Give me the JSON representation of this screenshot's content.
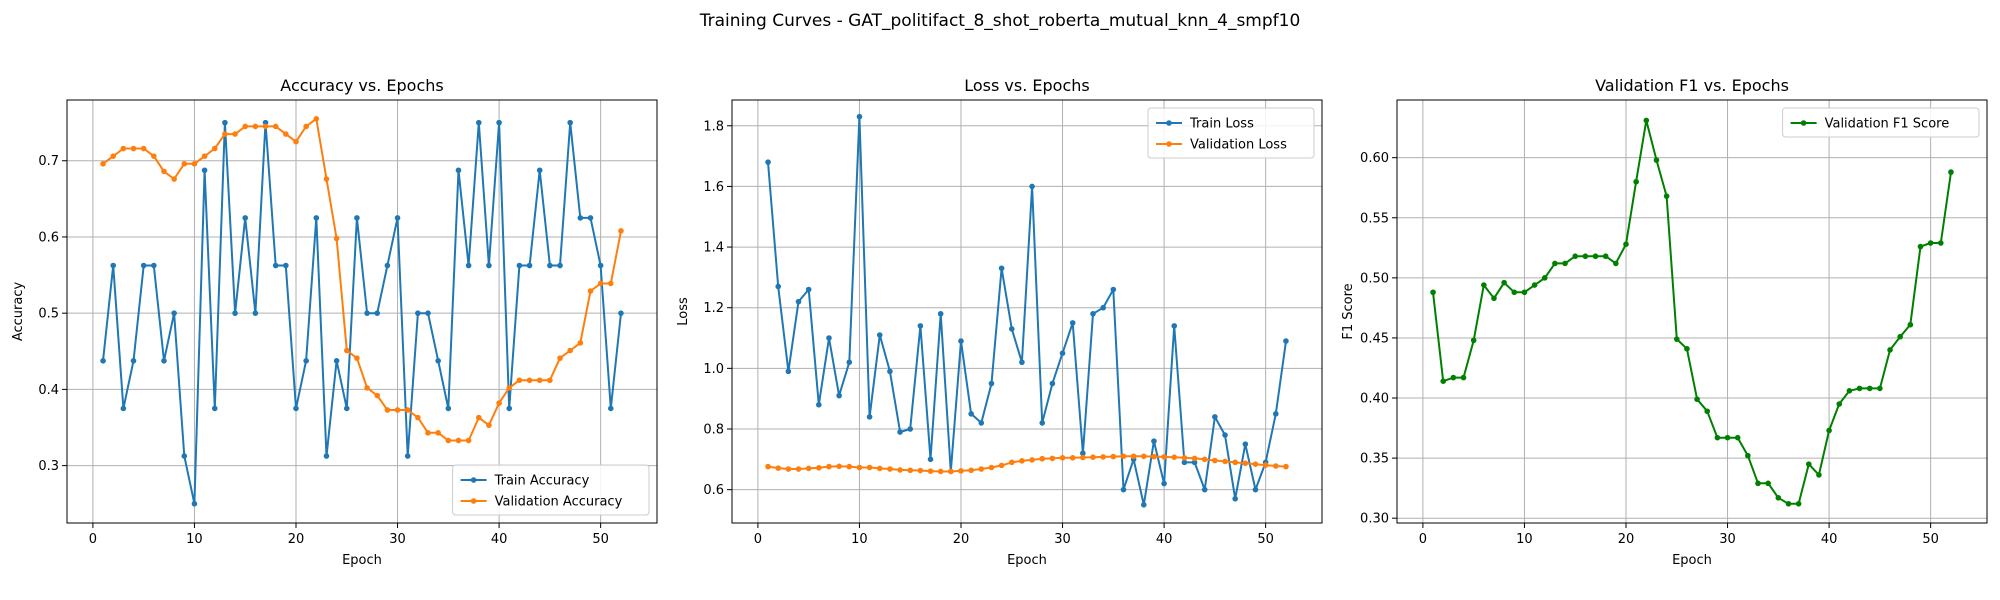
{
  "figure": {
    "suptitle": "Training Curves - GAT_politifact_8_shot_roberta_mutual_knn_4_smpf10"
  },
  "chart_data": [
    {
      "type": "line",
      "title": "Accuracy vs. Epochs",
      "xlabel": "Epoch",
      "ylabel": "Accuracy",
      "xlim": [
        -2.55,
        55.55
      ],
      "ylim": [
        0.2247,
        0.7797
      ],
      "xticks": [
        0,
        10,
        20,
        30,
        40,
        50
      ],
      "yticks": [
        0.3,
        0.4,
        0.5,
        0.6,
        0.7
      ],
      "grid": true,
      "legend": "lower-right",
      "x": [
        1,
        2,
        3,
        4,
        5,
        6,
        7,
        8,
        9,
        10,
        11,
        12,
        13,
        14,
        15,
        16,
        17,
        18,
        19,
        20,
        21,
        22,
        23,
        24,
        25,
        26,
        27,
        28,
        29,
        30,
        31,
        32,
        33,
        34,
        35,
        36,
        37,
        38,
        39,
        40,
        41,
        42,
        43,
        44,
        45,
        46,
        47,
        48,
        49,
        50,
        51,
        52
      ],
      "series": [
        {
          "name": "Train Accuracy",
          "color": "#1f77b4",
          "values": [
            0.4375,
            0.5625,
            0.375,
            0.4375,
            0.5625,
            0.5625,
            0.4375,
            0.5,
            0.3125,
            0.25,
            0.6875,
            0.375,
            0.75,
            0.5,
            0.625,
            0.5,
            0.75,
            0.5625,
            0.5625,
            0.375,
            0.4375,
            0.625,
            0.3125,
            0.4375,
            0.375,
            0.625,
            0.5,
            0.5,
            0.5625,
            0.625,
            0.3125,
            0.5,
            0.5,
            0.4375,
            0.375,
            0.6875,
            0.5625,
            0.75,
            0.5625,
            0.75,
            0.375,
            0.5625,
            0.5625,
            0.6875,
            0.5625,
            0.5625,
            0.75,
            0.625,
            0.625,
            0.5625,
            0.375,
            0.5
          ]
        },
        {
          "name": "Validation Accuracy",
          "color": "#ff7f0e",
          "values": [
            0.696,
            0.706,
            0.716,
            0.716,
            0.716,
            0.706,
            0.686,
            0.676,
            0.696,
            0.696,
            0.706,
            0.716,
            0.735,
            0.735,
            0.745,
            0.745,
            0.745,
            0.745,
            0.735,
            0.725,
            0.745,
            0.755,
            0.676,
            0.598,
            0.451,
            0.441,
            0.402,
            0.392,
            0.373,
            0.373,
            0.373,
            0.363,
            0.343,
            0.343,
            0.333,
            0.333,
            0.333,
            0.363,
            0.353,
            0.382,
            0.402,
            0.412,
            0.412,
            0.412,
            0.412,
            0.441,
            0.451,
            0.461,
            0.529,
            0.539,
            0.539,
            0.608
          ]
        }
      ]
    },
    {
      "type": "line",
      "title": "Loss vs. Epochs",
      "xlabel": "Epoch",
      "ylabel": "Loss",
      "xlim": [
        -2.55,
        55.55
      ],
      "ylim": [
        0.49,
        1.885
      ],
      "xticks": [
        0,
        10,
        20,
        30,
        40,
        50
      ],
      "yticks": [
        0.6,
        0.8,
        1.0,
        1.2,
        1.4,
        1.6,
        1.8
      ],
      "grid": true,
      "legend": "top-right",
      "x": [
        1,
        2,
        3,
        4,
        5,
        6,
        7,
        8,
        9,
        10,
        11,
        12,
        13,
        14,
        15,
        16,
        17,
        18,
        19,
        20,
        21,
        22,
        23,
        24,
        25,
        26,
        27,
        28,
        29,
        30,
        31,
        32,
        33,
        34,
        35,
        36,
        37,
        38,
        39,
        40,
        41,
        42,
        43,
        44,
        45,
        46,
        47,
        48,
        49,
        50,
        51,
        52
      ],
      "series": [
        {
          "name": "Train Loss",
          "color": "#1f77b4",
          "values": [
            1.68,
            1.27,
            0.99,
            1.22,
            1.26,
            0.88,
            1.1,
            0.91,
            1.02,
            1.83,
            0.84,
            1.11,
            0.99,
            0.79,
            0.8,
            1.14,
            0.7,
            1.18,
            0.66,
            1.09,
            0.85,
            0.82,
            0.95,
            1.33,
            1.13,
            1.02,
            1.6,
            0.82,
            0.95,
            1.05,
            1.15,
            0.72,
            1.18,
            1.2,
            1.26,
            0.6,
            0.7,
            0.55,
            0.76,
            0.62,
            1.14,
            0.69,
            0.69,
            0.6,
            0.84,
            0.78,
            0.57,
            0.75,
            0.6,
            0.69,
            0.85,
            1.09
          ]
        },
        {
          "name": "Validation Loss",
          "color": "#ff7f0e",
          "values": [
            0.676,
            0.671,
            0.668,
            0.668,
            0.67,
            0.672,
            0.676,
            0.677,
            0.676,
            0.673,
            0.673,
            0.67,
            0.668,
            0.665,
            0.664,
            0.663,
            0.661,
            0.66,
            0.66,
            0.662,
            0.664,
            0.668,
            0.673,
            0.68,
            0.69,
            0.695,
            0.698,
            0.702,
            0.703,
            0.705,
            0.705,
            0.706,
            0.707,
            0.708,
            0.709,
            0.71,
            0.71,
            0.71,
            0.709,
            0.708,
            0.707,
            0.705,
            0.703,
            0.7,
            0.696,
            0.693,
            0.69,
            0.687,
            0.684,
            0.681,
            0.678,
            0.676
          ]
        }
      ]
    },
    {
      "type": "line",
      "title": "Validation F1 vs. Epochs",
      "xlabel": "Epoch",
      "ylabel": "F1 Score",
      "xlim": [
        -2.55,
        55.55
      ],
      "ylim": [
        0.296,
        0.648
      ],
      "xticks": [
        0,
        10,
        20,
        30,
        40,
        50
      ],
      "yticks": [
        0.3,
        0.35,
        0.4,
        0.45,
        0.5,
        0.55,
        0.6
      ],
      "grid": true,
      "legend": "top-right",
      "x": [
        1,
        2,
        3,
        4,
        5,
        6,
        7,
        8,
        9,
        10,
        11,
        12,
        13,
        14,
        15,
        16,
        17,
        18,
        19,
        20,
        21,
        22,
        23,
        24,
        25,
        26,
        27,
        28,
        29,
        30,
        31,
        32,
        33,
        34,
        35,
        36,
        37,
        38,
        39,
        40,
        41,
        42,
        43,
        44,
        45,
        46,
        47,
        48,
        49,
        50,
        51,
        52
      ],
      "series": [
        {
          "name": "Validation F1 Score",
          "color": "#008000",
          "values": [
            0.488,
            0.414,
            0.417,
            0.417,
            0.448,
            0.494,
            0.483,
            0.496,
            0.488,
            0.488,
            0.494,
            0.5,
            0.512,
            0.512,
            0.518,
            0.518,
            0.518,
            0.518,
            0.512,
            0.528,
            0.58,
            0.631,
            0.598,
            0.568,
            0.449,
            0.441,
            0.399,
            0.389,
            0.367,
            0.367,
            0.367,
            0.352,
            0.329,
            0.329,
            0.317,
            0.312,
            0.312,
            0.345,
            0.336,
            0.373,
            0.395,
            0.406,
            0.408,
            0.408,
            0.408,
            0.44,
            0.451,
            0.461,
            0.526,
            0.529,
            0.529,
            0.588
          ]
        }
      ]
    }
  ]
}
